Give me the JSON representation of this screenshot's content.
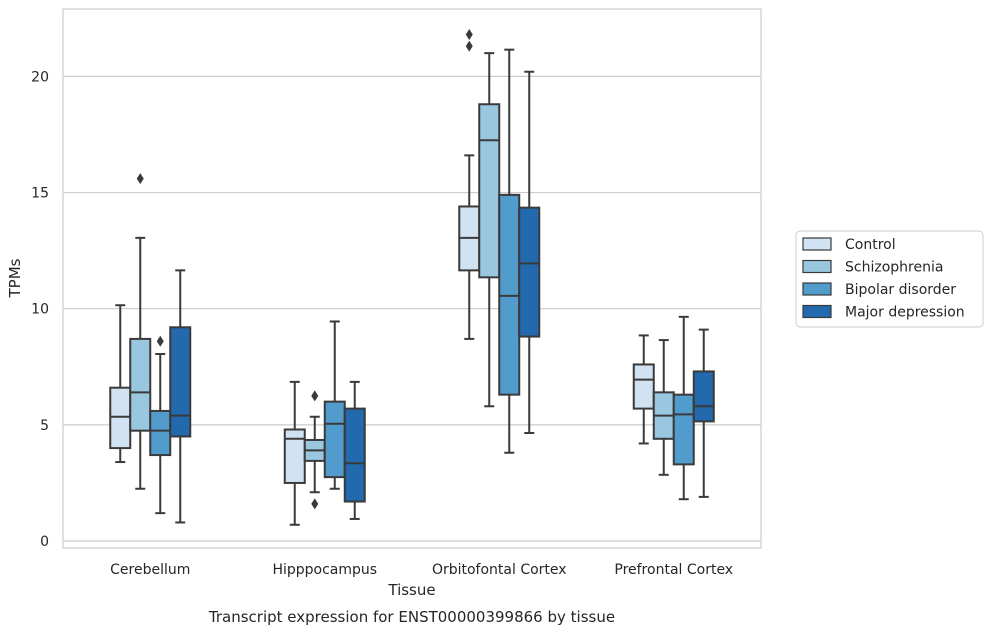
{
  "chart_data": {
    "type": "box",
    "xlabel": "Tissue",
    "ylabel": "TPMs",
    "caption": "Transcript expression for ENST00000399866 by tissue",
    "ylim": [
      -0.3,
      22.9
    ],
    "yticks": [
      0,
      5,
      10,
      15,
      20
    ],
    "grid": "horizontal",
    "legend_position": "right",
    "categories": [
      "Cerebellum",
      "Hipppocampus",
      "Orbitofontal Cortex",
      "Prefrontal Cortex"
    ],
    "series": [
      {
        "name": "Control",
        "color": "#d1e2f2",
        "boxes": [
          {
            "whisker_low": 3.4,
            "q1": 4.0,
            "median": 5.35,
            "q3": 6.6,
            "whisker_high": 10.15,
            "outliers": []
          },
          {
            "whisker_low": 0.7,
            "q1": 2.5,
            "median": 4.4,
            "q3": 4.8,
            "whisker_high": 6.85,
            "outliers": []
          },
          {
            "whisker_low": 8.7,
            "q1": 11.65,
            "median": 13.05,
            "q3": 14.4,
            "whisker_high": 16.6,
            "outliers": [
              21.3,
              21.8
            ]
          },
          {
            "whisker_low": 4.2,
            "q1": 5.7,
            "median": 6.95,
            "q3": 7.6,
            "whisker_high": 8.85,
            "outliers": []
          }
        ]
      },
      {
        "name": "Schizophrenia",
        "color": "#9ac7e0",
        "boxes": [
          {
            "whisker_low": 2.25,
            "q1": 4.75,
            "median": 6.4,
            "q3": 8.7,
            "whisker_high": 13.05,
            "outliers": [
              15.6
            ]
          },
          {
            "whisker_low": 2.1,
            "q1": 3.45,
            "median": 3.9,
            "q3": 4.35,
            "whisker_high": 5.35,
            "outliers": [
              6.25,
              1.6
            ]
          },
          {
            "whisker_low": 5.8,
            "q1": 11.35,
            "median": 17.25,
            "q3": 18.8,
            "whisker_high": 21.0,
            "outliers": []
          },
          {
            "whisker_low": 2.85,
            "q1": 4.4,
            "median": 5.4,
            "q3": 6.4,
            "whisker_high": 8.65,
            "outliers": []
          }
        ]
      },
      {
        "name": "Bipolar disorder",
        "color": "#519ccc",
        "boxes": [
          {
            "whisker_low": 1.2,
            "q1": 3.7,
            "median": 4.75,
            "q3": 5.6,
            "whisker_high": 8.05,
            "outliers": [
              8.6
            ]
          },
          {
            "whisker_low": 2.25,
            "q1": 2.75,
            "median": 5.05,
            "q3": 6.0,
            "whisker_high": 9.45,
            "outliers": []
          },
          {
            "whisker_low": 3.8,
            "q1": 6.3,
            "median": 10.55,
            "q3": 14.9,
            "whisker_high": 21.15,
            "outliers": []
          },
          {
            "whisker_low": 1.8,
            "q1": 3.3,
            "median": 5.45,
            "q3": 6.3,
            "whisker_high": 9.65,
            "outliers": []
          }
        ]
      },
      {
        "name": "Major depression",
        "color": "#2269ad",
        "boxes": [
          {
            "whisker_low": 0.8,
            "q1": 4.5,
            "median": 5.4,
            "q3": 9.2,
            "whisker_high": 11.65,
            "outliers": []
          },
          {
            "whisker_low": 0.95,
            "q1": 1.7,
            "median": 3.35,
            "q3": 5.7,
            "whisker_high": 6.85,
            "outliers": []
          },
          {
            "whisker_low": 4.65,
            "q1": 8.8,
            "median": 11.95,
            "q3": 14.35,
            "whisker_high": 20.2,
            "outliers": []
          },
          {
            "whisker_low": 1.9,
            "q1": 5.15,
            "median": 5.8,
            "q3": 7.3,
            "whisker_high": 9.1,
            "outliers": []
          }
        ]
      }
    ]
  }
}
